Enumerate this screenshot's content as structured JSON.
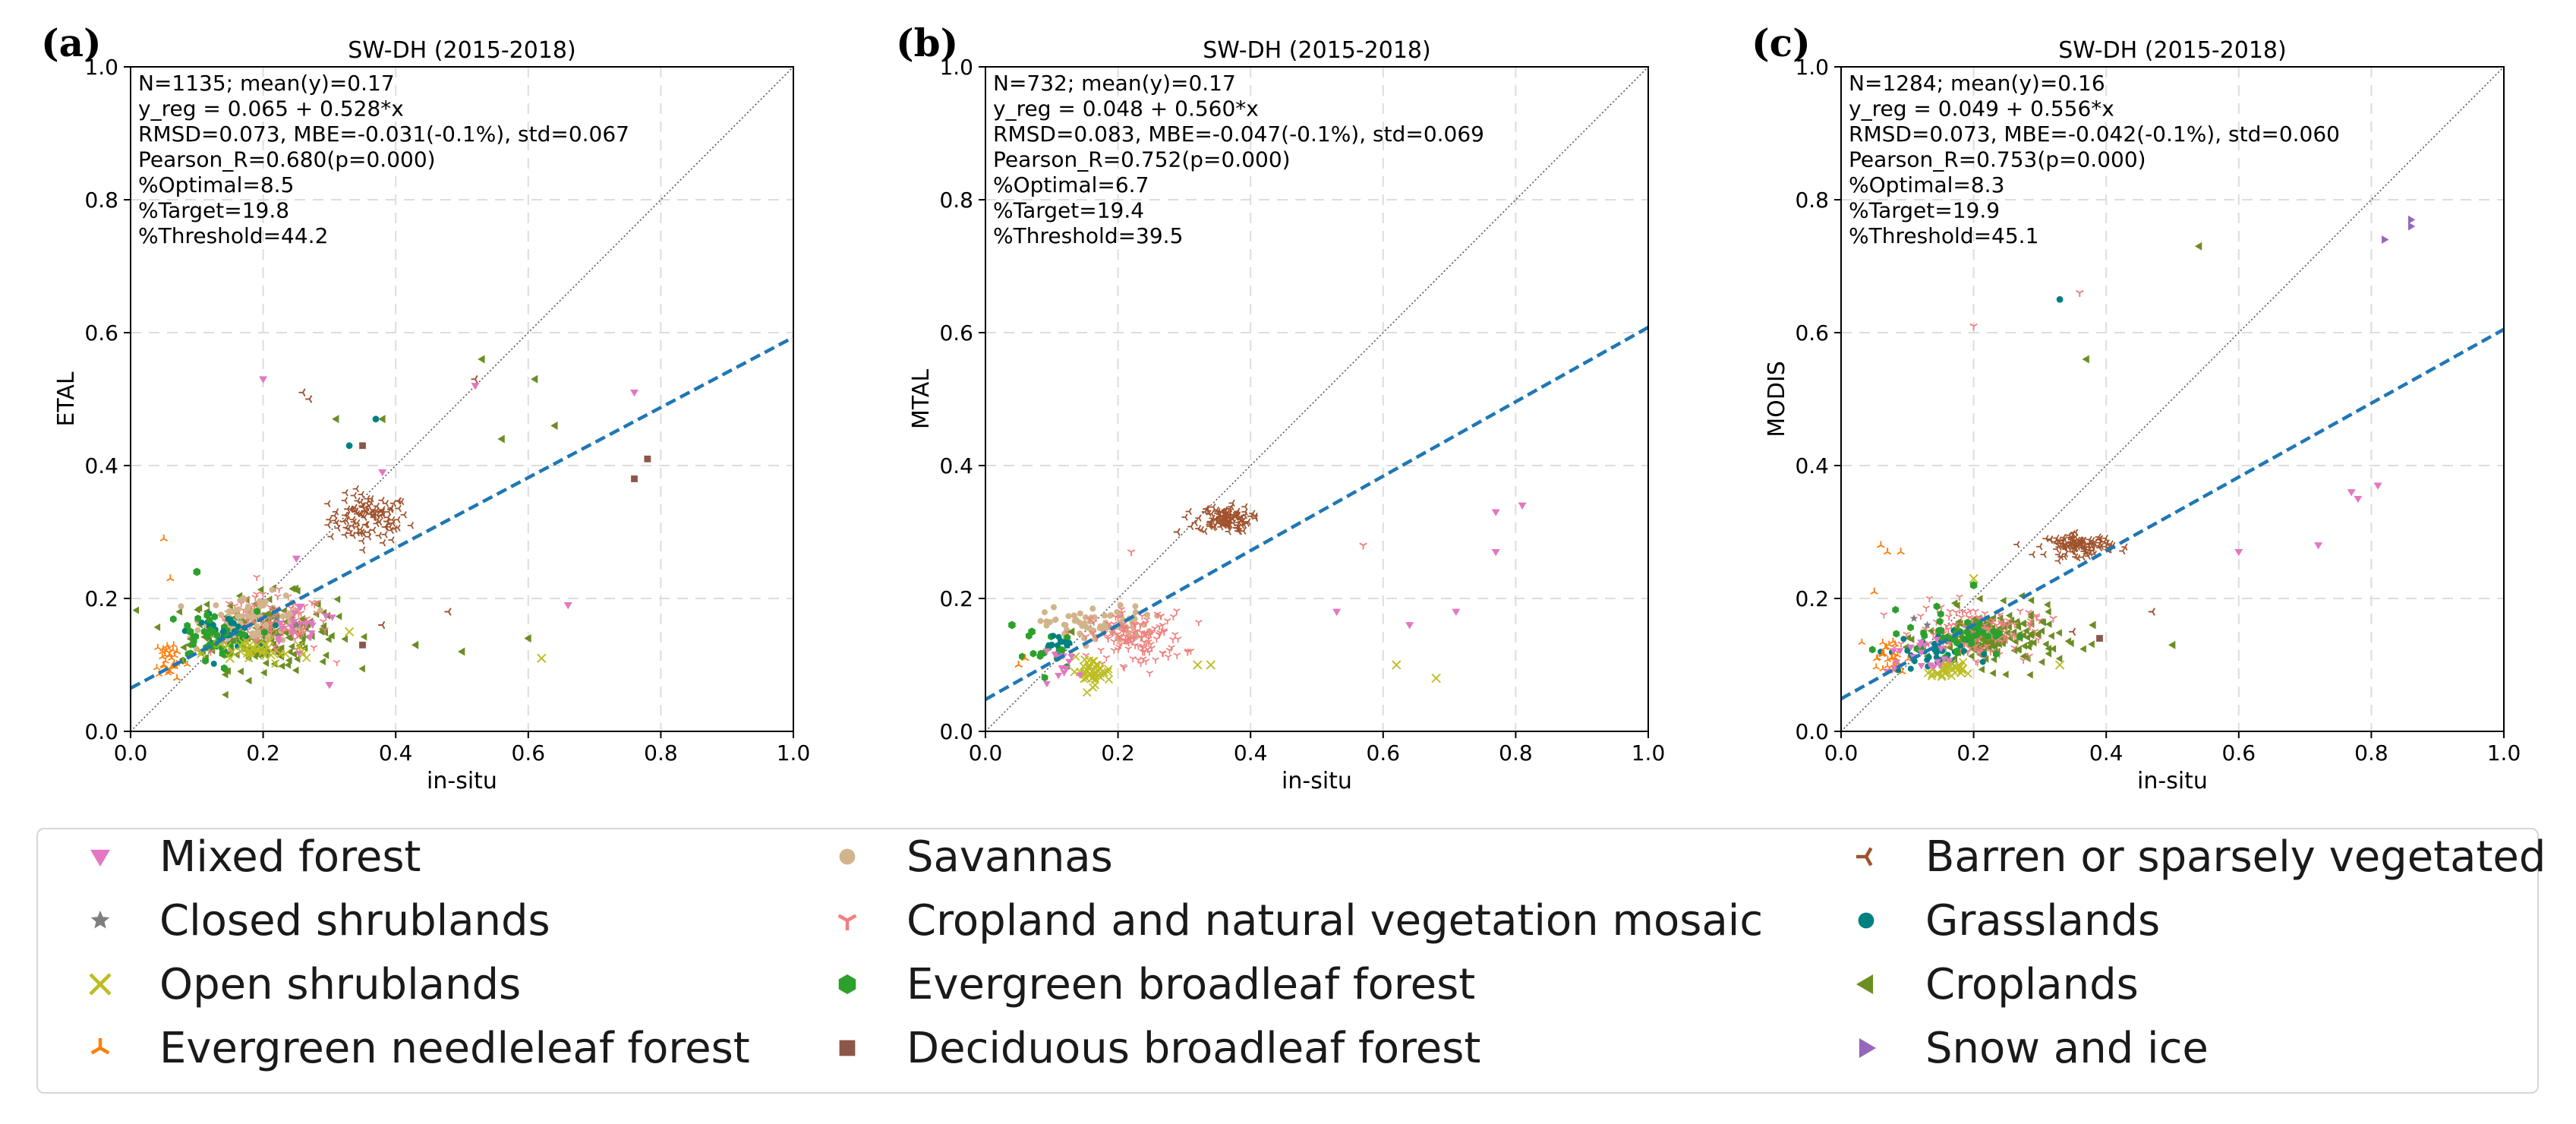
{
  "chart_data": [
    {
      "type": "scatter",
      "panel": "(a)",
      "title": "SW-DH (2015-2018)",
      "xlabel": "in-situ",
      "ylabel": "ETAL",
      "xlim": [
        0,
        1
      ],
      "ylim": [
        0,
        1
      ],
      "xticks": [
        "0.0",
        "0.2",
        "0.4",
        "0.6",
        "0.8",
        "1.0"
      ],
      "yticks": [
        "0.0",
        "0.2",
        "0.4",
        "0.6",
        "0.8",
        "1.0"
      ],
      "grid": true,
      "regression": {
        "intercept": 0.065,
        "slope": 0.528
      },
      "stats": [
        "N=1135; mean(y)=0.17",
        "y_reg = 0.065 + 0.528*x",
        "RMSD=0.073, MBE=-0.031(-0.1%), std=0.067",
        "Pearson_R=0.680(p=0.000)",
        "%Optimal=8.5",
        "%Target=19.8",
        "%Threshold=44.2"
      ],
      "series": [
        {
          "name": "Mixed forest",
          "points": [
            [
              0.2,
              0.53
            ],
            [
              0.52,
              0.52
            ],
            [
              0.76,
              0.51
            ],
            [
              0.66,
              0.19
            ],
            [
              0.3,
              0.07
            ],
            [
              0.38,
              0.39
            ],
            [
              0.25,
              0.26
            ]
          ]
        },
        {
          "name": "Closed shrublands",
          "points": [
            [
              0.22,
              0.17
            ],
            [
              0.25,
              0.16
            ]
          ]
        },
        {
          "name": "Open shrublands",
          "points": [
            [
              0.62,
              0.11
            ],
            [
              0.33,
              0.15
            ],
            [
              0.15,
              0.11
            ],
            [
              0.18,
              0.12
            ]
          ]
        },
        {
          "name": "Evergreen needleleaf forest",
          "points": [
            [
              0.05,
              0.29
            ],
            [
              0.06,
              0.23
            ],
            [
              0.07,
              0.12
            ],
            [
              0.05,
              0.1
            ],
            [
              0.06,
              0.09
            ],
            [
              0.07,
              0.08
            ]
          ]
        },
        {
          "name": "Savannas",
          "points": [
            [
              0.17,
              0.2
            ],
            [
              0.2,
              0.19
            ]
          ]
        },
        {
          "name": "Cropland and natural vegetation mosaic",
          "points": [
            [
              0.2,
              0.17
            ],
            [
              0.23,
              0.15
            ]
          ]
        },
        {
          "name": "Evergreen broadleaf forest",
          "points": [
            [
              0.12,
              0.13
            ],
            [
              0.1,
              0.24
            ],
            [
              0.09,
              0.15
            ]
          ]
        },
        {
          "name": "Deciduous broadleaf forest",
          "points": [
            [
              0.35,
              0.43
            ],
            [
              0.76,
              0.38
            ],
            [
              0.78,
              0.41
            ],
            [
              0.35,
              0.13
            ]
          ]
        },
        {
          "name": "Barren or sparsely vegetated",
          "points": [
            [
              0.26,
              0.51
            ],
            [
              0.27,
              0.5
            ],
            [
              0.38,
              0.33
            ],
            [
              0.48,
              0.18
            ],
            [
              0.52,
              0.53
            ],
            [
              0.38,
              0.16
            ]
          ]
        },
        {
          "name": "Grasslands",
          "points": [
            [
              0.33,
              0.43
            ],
            [
              0.37,
              0.47
            ],
            [
              0.14,
              0.15
            ]
          ]
        },
        {
          "name": "Croplands",
          "points": [
            [
              0.53,
              0.56
            ],
            [
              0.56,
              0.44
            ],
            [
              0.61,
              0.53
            ],
            [
              0.64,
              0.46
            ],
            [
              0.6,
              0.14
            ],
            [
              0.43,
              0.13
            ],
            [
              0.5,
              0.12
            ],
            [
              0.38,
              0.47
            ],
            [
              0.31,
              0.47
            ]
          ]
        },
        {
          "name": "Snow and ice",
          "points": []
        }
      ],
      "clusters": [
        {
          "name": "Barren or sparsely vegetated",
          "center": [
            0.36,
            0.32
          ],
          "spread": [
            0.03,
            0.018
          ],
          "count": 110
        },
        {
          "name": "Croplands",
          "center": [
            0.2,
            0.15
          ],
          "spread": [
            0.055,
            0.028
          ],
          "count": 200
        },
        {
          "name": "Cropland and natural vegetation mosaic",
          "center": [
            0.21,
            0.16
          ],
          "spread": [
            0.045,
            0.022
          ],
          "count": 130
        },
        {
          "name": "Savannas",
          "center": [
            0.19,
            0.17
          ],
          "spread": [
            0.04,
            0.018
          ],
          "count": 70
        },
        {
          "name": "Grasslands",
          "center": [
            0.14,
            0.15
          ],
          "spread": [
            0.025,
            0.012
          ],
          "count": 35
        },
        {
          "name": "Evergreen broadleaf forest",
          "center": [
            0.12,
            0.14
          ],
          "spread": [
            0.035,
            0.02
          ],
          "count": 40
        },
        {
          "name": "Open shrublands",
          "center": [
            0.19,
            0.12
          ],
          "spread": [
            0.04,
            0.01
          ],
          "count": 40
        },
        {
          "name": "Evergreen needleleaf forest",
          "center": [
            0.06,
            0.11
          ],
          "spread": [
            0.012,
            0.015
          ],
          "count": 30
        },
        {
          "name": "Mixed forest",
          "center": [
            0.26,
            0.16
          ],
          "spread": [
            0.03,
            0.015
          ],
          "count": 20
        }
      ]
    },
    {
      "type": "scatter",
      "panel": "(b)",
      "title": "SW-DH (2015-2018)",
      "xlabel": "in-situ",
      "ylabel": "MTAL",
      "xlim": [
        0,
        1
      ],
      "ylim": [
        0,
        1
      ],
      "xticks": [
        "0.0",
        "0.2",
        "0.4",
        "0.6",
        "0.8",
        "1.0"
      ],
      "yticks": [
        "0.0",
        "0.2",
        "0.4",
        "0.6",
        "0.8",
        "1.0"
      ],
      "grid": true,
      "regression": {
        "intercept": 0.048,
        "slope": 0.56
      },
      "stats": [
        "N=732; mean(y)=0.17",
        "y_reg = 0.048 + 0.560*x",
        "RMSD=0.083, MBE=-0.047(-0.1%), std=0.069",
        "Pearson_R=0.752(p=0.000)",
        "%Optimal=6.7",
        "%Target=19.4",
        "%Threshold=39.5"
      ],
      "series": [
        {
          "name": "Mixed forest",
          "points": [
            [
              0.77,
              0.33
            ],
            [
              0.81,
              0.34
            ],
            [
              0.77,
              0.27
            ],
            [
              0.53,
              0.18
            ],
            [
              0.64,
              0.16
            ],
            [
              0.71,
              0.18
            ]
          ]
        },
        {
          "name": "Closed shrublands",
          "points": []
        },
        {
          "name": "Open shrublands",
          "points": [
            [
              0.62,
              0.1
            ],
            [
              0.68,
              0.08
            ],
            [
              0.32,
              0.1
            ],
            [
              0.34,
              0.1
            ]
          ]
        },
        {
          "name": "Evergreen needleleaf forest",
          "points": [
            [
              0.06,
              0.11
            ],
            [
              0.05,
              0.1
            ]
          ]
        },
        {
          "name": "Savannas",
          "points": []
        },
        {
          "name": "Cropland and natural vegetation mosaic",
          "points": [
            [
              0.22,
              0.27
            ],
            [
              0.57,
              0.28
            ],
            [
              0.24,
              0.12
            ]
          ]
        },
        {
          "name": "Evergreen broadleaf forest",
          "points": [
            [
              0.04,
              0.16
            ],
            [
              0.07,
              0.15
            ]
          ]
        },
        {
          "name": "Deciduous broadleaf forest",
          "points": []
        },
        {
          "name": "Barren or sparsely vegetated",
          "points": [
            [
              0.29,
              0.3
            ]
          ]
        },
        {
          "name": "Grasslands",
          "points": [
            [
              0.1,
              0.13
            ]
          ]
        },
        {
          "name": "Croplands",
          "points": [
            [
              0.13,
              0.15
            ]
          ]
        },
        {
          "name": "Snow and ice",
          "points": []
        }
      ],
      "clusters": [
        {
          "name": "Barren or sparsely vegetated",
          "center": [
            0.36,
            0.32
          ],
          "spread": [
            0.02,
            0.01
          ],
          "count": 110
        },
        {
          "name": "Savannas",
          "center": [
            0.17,
            0.16
          ],
          "spread": [
            0.04,
            0.014
          ],
          "count": 80
        },
        {
          "name": "Cropland and natural vegetation mosaic",
          "center": [
            0.23,
            0.14
          ],
          "spread": [
            0.035,
            0.02
          ],
          "count": 120
        },
        {
          "name": "Open shrublands",
          "center": [
            0.16,
            0.09
          ],
          "spread": [
            0.015,
            0.01
          ],
          "count": 40
        },
        {
          "name": "Evergreen broadleaf forest",
          "center": [
            0.1,
            0.12
          ],
          "spread": [
            0.02,
            0.015
          ],
          "count": 15
        },
        {
          "name": "Grasslands",
          "center": [
            0.12,
            0.13
          ],
          "spread": [
            0.015,
            0.01
          ],
          "count": 10
        },
        {
          "name": "Mixed forest",
          "center": [
            0.12,
            0.1
          ],
          "spread": [
            0.02,
            0.01
          ],
          "count": 12
        }
      ]
    },
    {
      "type": "scatter",
      "panel": "(c)",
      "title": "SW-DH (2015-2018)",
      "xlabel": "in-situ",
      "ylabel": "MODIS",
      "xlim": [
        0,
        1
      ],
      "ylim": [
        0,
        1
      ],
      "xticks": [
        "0.0",
        "0.2",
        "0.4",
        "0.6",
        "0.8",
        "1.0"
      ],
      "yticks": [
        "0.0",
        "0.2",
        "0.4",
        "0.6",
        "0.8",
        "1.0"
      ],
      "grid": true,
      "regression": {
        "intercept": 0.049,
        "slope": 0.556
      },
      "stats": [
        "N=1284; mean(y)=0.16",
        "y_reg = 0.049 + 0.556*x",
        "RMSD=0.073, MBE=-0.042(-0.1%), std=0.060",
        "Pearson_R=0.753(p=0.000)",
        "%Optimal=8.3",
        "%Target=19.9",
        "%Threshold=45.1"
      ],
      "series": [
        {
          "name": "Mixed forest",
          "points": [
            [
              0.77,
              0.36
            ],
            [
              0.78,
              0.35
            ],
            [
              0.81,
              0.37
            ],
            [
              0.72,
              0.28
            ],
            [
              0.6,
              0.27
            ]
          ]
        },
        {
          "name": "Closed shrublands",
          "points": [
            [
              0.11,
              0.17
            ],
            [
              0.13,
              0.16
            ]
          ]
        },
        {
          "name": "Open shrublands",
          "points": [
            [
              0.33,
              0.1
            ],
            [
              0.2,
              0.23
            ]
          ]
        },
        {
          "name": "Evergreen needleleaf forest",
          "points": [
            [
              0.06,
              0.28
            ],
            [
              0.07,
              0.27
            ],
            [
              0.09,
              0.27
            ],
            [
              0.05,
              0.21
            ]
          ]
        },
        {
          "name": "Savannas",
          "points": []
        },
        {
          "name": "Cropland and natural vegetation mosaic",
          "points": [
            [
              0.2,
              0.61
            ],
            [
              0.36,
              0.66
            ],
            [
              0.32,
              0.17
            ]
          ]
        },
        {
          "name": "Evergreen broadleaf forest",
          "points": [
            [
              0.2,
              0.22
            ]
          ]
        },
        {
          "name": "Deciduous broadleaf forest",
          "points": [
            [
              0.39,
              0.14
            ]
          ]
        },
        {
          "name": "Barren or sparsely vegetated",
          "points": [
            [
              0.47,
              0.18
            ],
            [
              0.35,
              0.15
            ]
          ]
        },
        {
          "name": "Grasslands",
          "points": [
            [
              0.33,
              0.65
            ]
          ]
        },
        {
          "name": "Croplands",
          "points": [
            [
              0.54,
              0.73
            ],
            [
              0.37,
              0.56
            ],
            [
              0.5,
              0.13
            ],
            [
              0.38,
              0.16
            ]
          ]
        },
        {
          "name": "Snow and ice",
          "points": [
            [
              0.86,
              0.77
            ],
            [
              0.86,
              0.76
            ],
            [
              0.82,
              0.74
            ]
          ]
        }
      ],
      "clusters": [
        {
          "name": "Barren or sparsely vegetated",
          "center": [
            0.36,
            0.28
          ],
          "spread": [
            0.025,
            0.008
          ],
          "count": 110
        },
        {
          "name": "Croplands",
          "center": [
            0.23,
            0.14
          ],
          "spread": [
            0.05,
            0.022
          ],
          "count": 180
        },
        {
          "name": "Cropland and natural vegetation mosaic",
          "center": [
            0.2,
            0.15
          ],
          "spread": [
            0.045,
            0.02
          ],
          "count": 140
        },
        {
          "name": "Grasslands",
          "center": [
            0.13,
            0.12
          ],
          "spread": [
            0.03,
            0.015
          ],
          "count": 40
        },
        {
          "name": "Open shrublands",
          "center": [
            0.16,
            0.09
          ],
          "spread": [
            0.012,
            0.007
          ],
          "count": 35
        },
        {
          "name": "Evergreen needleleaf forest",
          "center": [
            0.07,
            0.11
          ],
          "spread": [
            0.015,
            0.015
          ],
          "count": 30
        },
        {
          "name": "Evergreen broadleaf forest",
          "center": [
            0.18,
            0.15
          ],
          "spread": [
            0.04,
            0.018
          ],
          "count": 40
        },
        {
          "name": "Mixed forest",
          "center": [
            0.12,
            0.11
          ],
          "spread": [
            0.025,
            0.015
          ],
          "count": 20
        }
      ]
    }
  ],
  "legend": {
    "entries": [
      {
        "name": "Mixed forest",
        "marker": "triangle-down",
        "color": "#e377c2"
      },
      {
        "name": "Closed shrublands",
        "marker": "star",
        "color": "#7f7f7f"
      },
      {
        "name": "Open shrublands",
        "marker": "x",
        "color": "#bcbd22"
      },
      {
        "name": "Evergreen needleleaf forest",
        "marker": "tri-up",
        "color": "#ff7f0e"
      },
      {
        "name": "Savannas",
        "marker": "circle",
        "color": "#d2b48c"
      },
      {
        "name": "Cropland and natural vegetation mosaic",
        "marker": "tri-down",
        "color": "#f08080"
      },
      {
        "name": "Evergreen broadleaf forest",
        "marker": "hexagon",
        "color": "#2ca02c"
      },
      {
        "name": "Deciduous broadleaf forest",
        "marker": "square",
        "color": "#8c564b"
      },
      {
        "name": "Barren or sparsely vegetated",
        "marker": "tri-left",
        "color": "#a0522d"
      },
      {
        "name": "Grasslands",
        "marker": "circle",
        "color": "#008080"
      },
      {
        "name": "Croplands",
        "marker": "triangle-left",
        "color": "#6b8e23"
      },
      {
        "name": "Snow and ice",
        "marker": "triangle-right",
        "color": "#9467bd"
      }
    ]
  },
  "colors": {
    "regression_line": "#1f77b4",
    "identity_line": "#555555",
    "grid": "#dddddd"
  }
}
